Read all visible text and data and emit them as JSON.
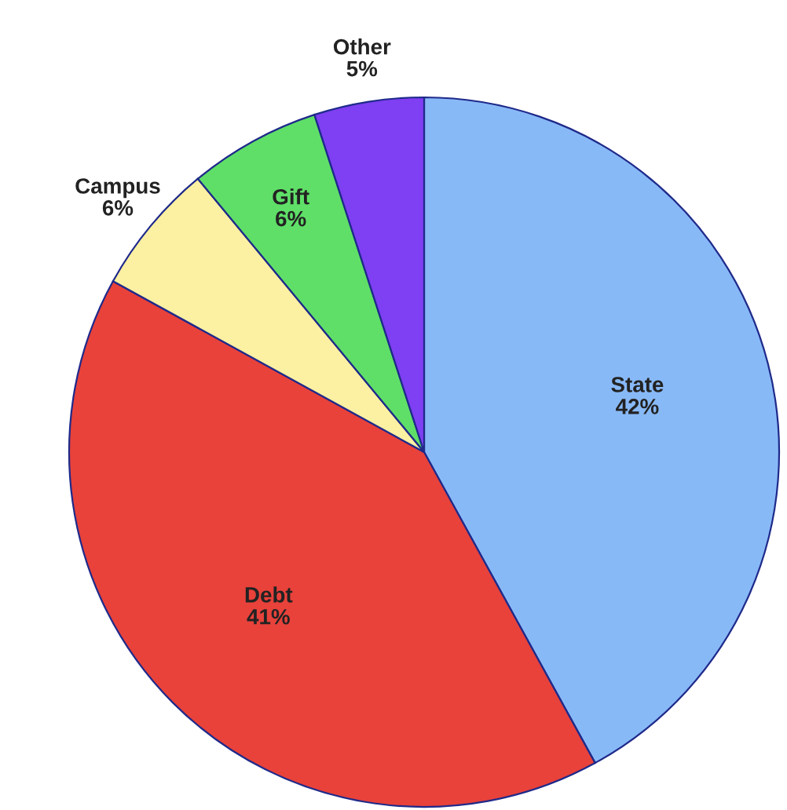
{
  "chart_data": {
    "type": "pie",
    "categories": [
      "State",
      "Debt",
      "Campus",
      "Gift",
      "Other"
    ],
    "values": [
      42,
      41,
      6,
      6,
      5
    ],
    "colors": [
      "#88b9f7",
      "#e8423b",
      "#fcf0a2",
      "#5fdf68",
      "#7f3ff2"
    ],
    "value_labels": [
      "42%",
      "41%",
      "6%",
      "6%",
      "5%"
    ]
  }
}
